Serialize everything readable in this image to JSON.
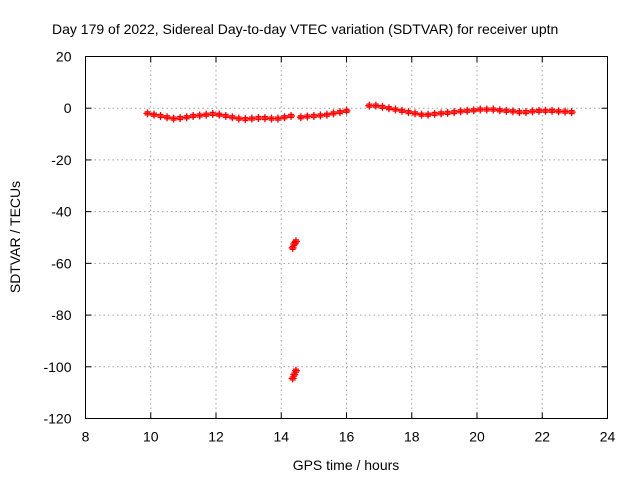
{
  "chart_data": {
    "type": "scatter",
    "title": "Day 179 of 2022, Sidereal Day-to-day VTEC variation (SDTVAR) for receiver uptn",
    "xlabel": "GPS time / hours",
    "ylabel": "SDTVAR / TECUs",
    "xlim": [
      8,
      24
    ],
    "ylim": [
      -120,
      20
    ],
    "xticks": [
      8,
      10,
      12,
      14,
      16,
      18,
      20,
      22,
      24
    ],
    "yticks": [
      20,
      0,
      -20,
      -40,
      -60,
      -80,
      -100,
      -120
    ],
    "grid": true,
    "marker": "plus",
    "color": "#ff0000",
    "series": [
      {
        "name": "SDTVAR",
        "x": [
          9.9,
          10.1,
          10.3,
          10.5,
          10.7,
          10.9,
          11.1,
          11.3,
          11.5,
          11.7,
          11.9,
          12.1,
          12.3,
          12.5,
          12.7,
          12.9,
          13.1,
          13.3,
          13.5,
          13.7,
          13.9,
          14.1,
          14.3,
          14.35,
          14.4,
          14.45,
          14.35,
          14.4,
          14.45,
          14.6,
          14.8,
          15.0,
          15.2,
          15.4,
          15.6,
          15.8,
          16.0,
          16.7,
          16.9,
          17.1,
          17.3,
          17.5,
          17.7,
          17.9,
          18.1,
          18.3,
          18.5,
          18.7,
          18.9,
          19.1,
          19.3,
          19.5,
          19.7,
          19.9,
          20.1,
          20.3,
          20.5,
          20.7,
          20.9,
          21.1,
          21.3,
          21.5,
          21.7,
          21.9,
          22.1,
          22.3,
          22.5,
          22.7,
          22.9
        ],
        "y": [
          -2,
          -2.5,
          -3,
          -3.5,
          -4,
          -3.8,
          -3.5,
          -3,
          -2.8,
          -2.5,
          -2.2,
          -2.5,
          -3,
          -3.5,
          -4,
          -4.2,
          -4,
          -3.8,
          -3.8,
          -4,
          -4,
          -3.5,
          -3,
          -54,
          -52.5,
          -51.5,
          -104.5,
          -103,
          -101.5,
          -3.5,
          -3.2,
          -3,
          -2.8,
          -2.5,
          -2,
          -1.5,
          -1,
          1,
          1,
          0.5,
          0,
          -0.5,
          -1,
          -1.5,
          -2,
          -2.5,
          -2.5,
          -2.2,
          -2,
          -1.8,
          -1.5,
          -1.2,
          -1,
          -0.8,
          -0.5,
          -0.5,
          -0.5,
          -0.8,
          -1,
          -1.2,
          -1.5,
          -1.5,
          -1.2,
          -1,
          -1,
          -1,
          -1.2,
          -1.3,
          -1.5
        ]
      }
    ]
  }
}
